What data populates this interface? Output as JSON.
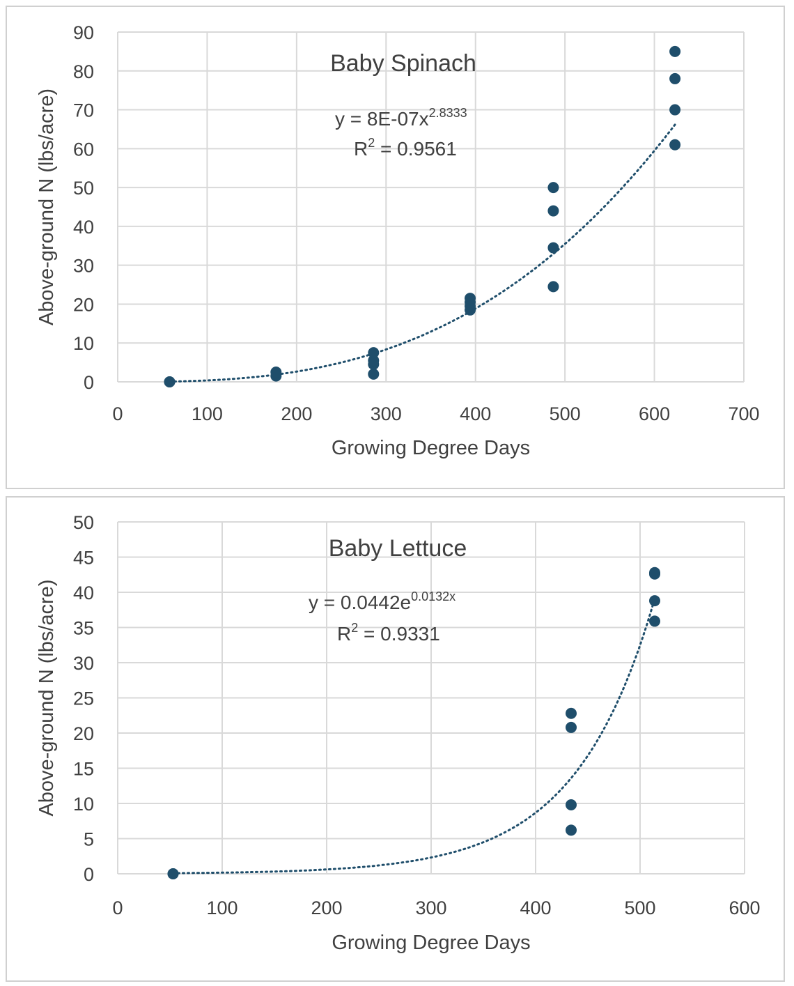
{
  "chart_data": [
    {
      "type": "scatter",
      "title": "Baby Spinach",
      "xlabel": "Growing Degree Days",
      "ylabel": "Above-ground N (lbs/acre)",
      "xlim": [
        0,
        700
      ],
      "ylim": [
        0,
        90
      ],
      "x_ticks": [
        0,
        100,
        200,
        300,
        400,
        500,
        600,
        700
      ],
      "y_ticks": [
        0,
        10,
        20,
        30,
        40,
        50,
        60,
        70,
        80,
        90
      ],
      "grid": true,
      "color": "#1f4e6b",
      "series": [
        {
          "points": [
            [
              58,
              0
            ],
            [
              58,
              0
            ],
            [
              177,
              1.5
            ],
            [
              177,
              2.5
            ],
            [
              286,
              2
            ],
            [
              286,
              4.5
            ],
            [
              286,
              5.5
            ],
            [
              286,
              7.5
            ],
            [
              394,
              18.5
            ],
            [
              394,
              19.5
            ],
            [
              394,
              20.5
            ],
            [
              394,
              21.5
            ],
            [
              487,
              24.5
            ],
            [
              487,
              34.5
            ],
            [
              487,
              44
            ],
            [
              487,
              50
            ],
            [
              623,
              61
            ],
            [
              623,
              70
            ],
            [
              623,
              78
            ],
            [
              623,
              85
            ]
          ]
        }
      ],
      "trendline": {
        "kind": "power",
        "a": 8e-07,
        "b": 2.8333,
        "equation_main": "y = 8E-07x",
        "equation_exponent": "2.8333",
        "r2_main": "R",
        "r2_sup": "2",
        "r2_value": " = 0.9561"
      }
    },
    {
      "type": "scatter",
      "title": "Baby Lettuce",
      "xlabel": "Growing Degree Days",
      "ylabel": "Above-ground N (lbs/acre)",
      "xlim": [
        0,
        600
      ],
      "ylim": [
        0,
        50
      ],
      "x_ticks": [
        0,
        100,
        200,
        300,
        400,
        500,
        600
      ],
      "y_ticks": [
        0,
        5,
        10,
        15,
        20,
        25,
        30,
        35,
        40,
        45,
        50
      ],
      "grid": true,
      "color": "#1f4e6b",
      "series": [
        {
          "points": [
            [
              53,
              0
            ],
            [
              53,
              0
            ],
            [
              434,
              6.2
            ],
            [
              434,
              9.8
            ],
            [
              434,
              20.8
            ],
            [
              434,
              22.8
            ],
            [
              514,
              35.9
            ],
            [
              514,
              38.8
            ],
            [
              514,
              42.6
            ],
            [
              514,
              42.8
            ]
          ]
        }
      ],
      "trendline": {
        "kind": "exponential",
        "a": 0.0442,
        "b": 0.0132,
        "equation_main": "y = 0.0442e",
        "equation_exponent": "0.0132x",
        "r2_main": "R",
        "r2_sup": "2",
        "r2_value": " = 0.9331"
      }
    }
  ]
}
